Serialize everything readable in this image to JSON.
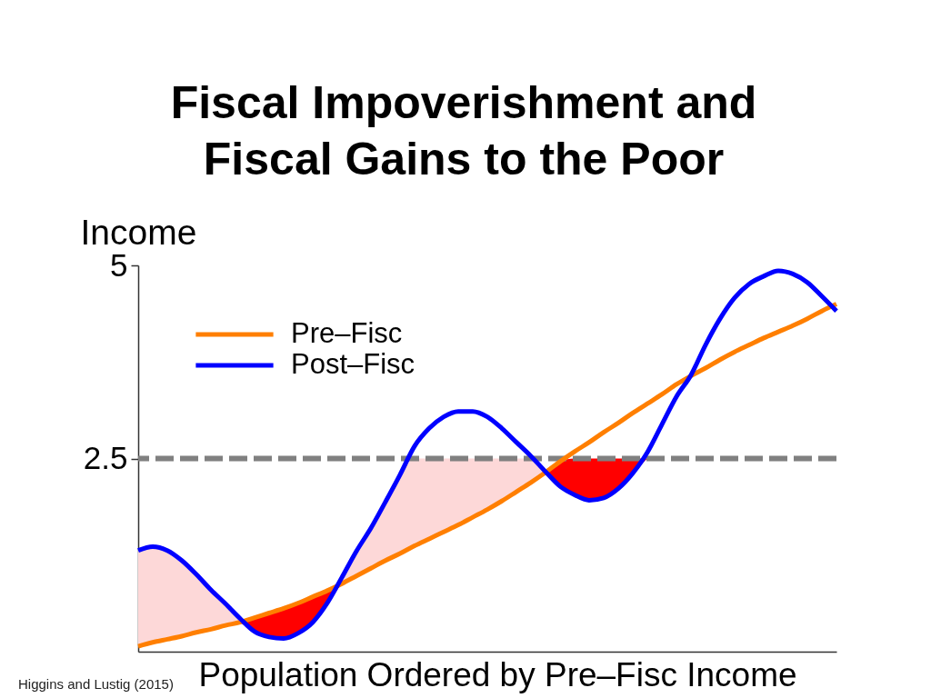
{
  "chart_data": {
    "type": "line",
    "title": "Fiscal Impoverishment and Fiscal Gains to the Poor",
    "xlabel": "Population Ordered by Pre–Fisc Income",
    "ylabel": "Income",
    "annotations": [
      "Higgins and Lustig (2015)"
    ],
    "categories": [
      null,
      null,
      null,
      null,
      null,
      null,
      null,
      null,
      null,
      null,
      null,
      null,
      null,
      null,
      null,
      null,
      null,
      null,
      null,
      null,
      null,
      null,
      null,
      null,
      null,
      null,
      null,
      null,
      null,
      null,
      null,
      null,
      null,
      null,
      null,
      null,
      null,
      null,
      null,
      null,
      null,
      null,
      null,
      null,
      null,
      null,
      null,
      null,
      null
    ],
    "series": [
      {
        "type": "area",
        "color": "#fdd8d8",
        "values": [
          null,
          null,
          null,
          null,
          null,
          null,
          null,
          null,
          null,
          null,
          null,
          null,
          null,
          null,
          null,
          null,
          null,
          null,
          null,
          null,
          null,
          null,
          null,
          null,
          null,
          null,
          null,
          null,
          null,
          null,
          null,
          null,
          null,
          null,
          null,
          null,
          null,
          null,
          null,
          null,
          null,
          null,
          null,
          null,
          null,
          null,
          null,
          null,
          null
        ],
        "upper": [
          1.31,
          1.36,
          1.31,
          1.18,
          1.0,
          0.8,
          0.62,
          0.43,
          null,
          null,
          null,
          null,
          null,
          null,
          0.96,
          1.3,
          1.6,
          1.94,
          2.29,
          2.5,
          2.5,
          2.5,
          2.5,
          2.5,
          2.5,
          2.5,
          2.5,
          2.5,
          2.33,
          null,
          null,
          null,
          null,
          null,
          null,
          null,
          null,
          null,
          null,
          null,
          null,
          null,
          null,
          null,
          null,
          null,
          null,
          null,
          null
        ],
        "lower": [
          0.07,
          0.12,
          0.16,
          0.2,
          0.25,
          0.29,
          0.34,
          0.38,
          null,
          null,
          null,
          null,
          null,
          null,
          0.88,
          0.98,
          1.08,
          1.18,
          1.27,
          1.37,
          1.46,
          1.55,
          1.64,
          1.74,
          1.84,
          1.95,
          2.07,
          2.19,
          2.32,
          null,
          null,
          null,
          null,
          null,
          null,
          null,
          null,
          null,
          null,
          null,
          null,
          null,
          null,
          null,
          null,
          null,
          null,
          null,
          null
        ]
      },
      {
        "type": "area",
        "color": "#ff0000",
        "values": [
          null,
          null,
          null,
          null,
          null,
          null,
          null,
          null,
          null,
          null,
          null,
          null,
          null,
          null,
          null,
          null,
          null,
          null,
          null,
          null,
          null,
          null,
          null,
          null,
          null,
          null,
          null,
          null,
          null,
          null,
          null,
          null,
          null,
          null,
          null,
          null,
          null,
          null,
          null,
          null,
          null,
          null,
          null,
          null,
          null,
          null,
          null,
          null,
          null
        ],
        "upper": [
          null,
          null,
          null,
          null,
          null,
          null,
          null,
          0.38,
          0.44,
          0.5,
          0.56,
          0.63,
          0.71,
          0.79,
          0.88,
          null,
          null,
          null,
          null,
          null,
          null,
          null,
          null,
          null,
          null,
          null,
          null,
          null,
          2.32,
          2.46,
          2.5,
          2.5,
          2.5,
          2.5,
          2.5,
          2.5,
          null,
          null,
          null,
          null,
          null,
          null,
          null,
          null,
          null,
          null,
          null,
          null,
          null
        ],
        "lower": [
          null,
          null,
          null,
          null,
          null,
          null,
          null,
          0.38,
          0.26,
          0.19,
          0.17,
          0.24,
          0.38,
          0.63,
          0.88,
          null,
          null,
          null,
          null,
          null,
          null,
          null,
          null,
          null,
          null,
          null,
          null,
          null,
          2.32,
          2.14,
          2.03,
          1.96,
          1.99,
          2.11,
          2.31,
          2.5,
          null,
          null,
          null,
          null,
          null,
          null,
          null,
          null,
          null,
          null,
          null,
          null,
          null
        ]
      },
      {
        "name": "Pre–Fisc",
        "color": "#ff7f00",
        "values": [
          0.07,
          0.12,
          0.16,
          0.2,
          0.25,
          0.29,
          0.34,
          0.38,
          0.44,
          0.5,
          0.56,
          0.63,
          0.71,
          0.79,
          0.88,
          0.98,
          1.08,
          1.18,
          1.27,
          1.37,
          1.46,
          1.55,
          1.64,
          1.74,
          1.84,
          1.95,
          2.07,
          2.19,
          2.32,
          2.46,
          2.59,
          2.71,
          2.84,
          2.96,
          3.09,
          3.21,
          3.33,
          3.46,
          3.57,
          3.67,
          3.78,
          3.88,
          3.97,
          4.06,
          4.14,
          4.22,
          4.31,
          4.41,
          4.5
        ]
      },
      {
        "name": "Post–Fisc",
        "color": "#0000ff",
        "values": [
          1.31,
          1.36,
          1.31,
          1.18,
          1.0,
          0.8,
          0.62,
          0.43,
          0.26,
          0.19,
          0.17,
          0.24,
          0.38,
          0.63,
          0.96,
          1.3,
          1.6,
          1.94,
          2.29,
          2.66,
          2.89,
          3.04,
          3.11,
          3.11,
          3.04,
          2.89,
          2.71,
          2.53,
          2.33,
          2.14,
          2.03,
          1.96,
          1.99,
          2.11,
          2.31,
          2.58,
          2.94,
          3.3,
          3.58,
          3.97,
          4.31,
          4.58,
          4.76,
          4.86,
          4.93,
          4.89,
          4.78,
          4.6,
          4.41
        ]
      }
    ],
    "ylim": [
      0,
      5
    ],
    "yticks": [
      2.5,
      5
    ],
    "ref_lines": [
      {
        "axis": "y",
        "value": 2.5,
        "color": "#808080",
        "line_style": "dashed"
      }
    ],
    "legend": "top left"
  }
}
